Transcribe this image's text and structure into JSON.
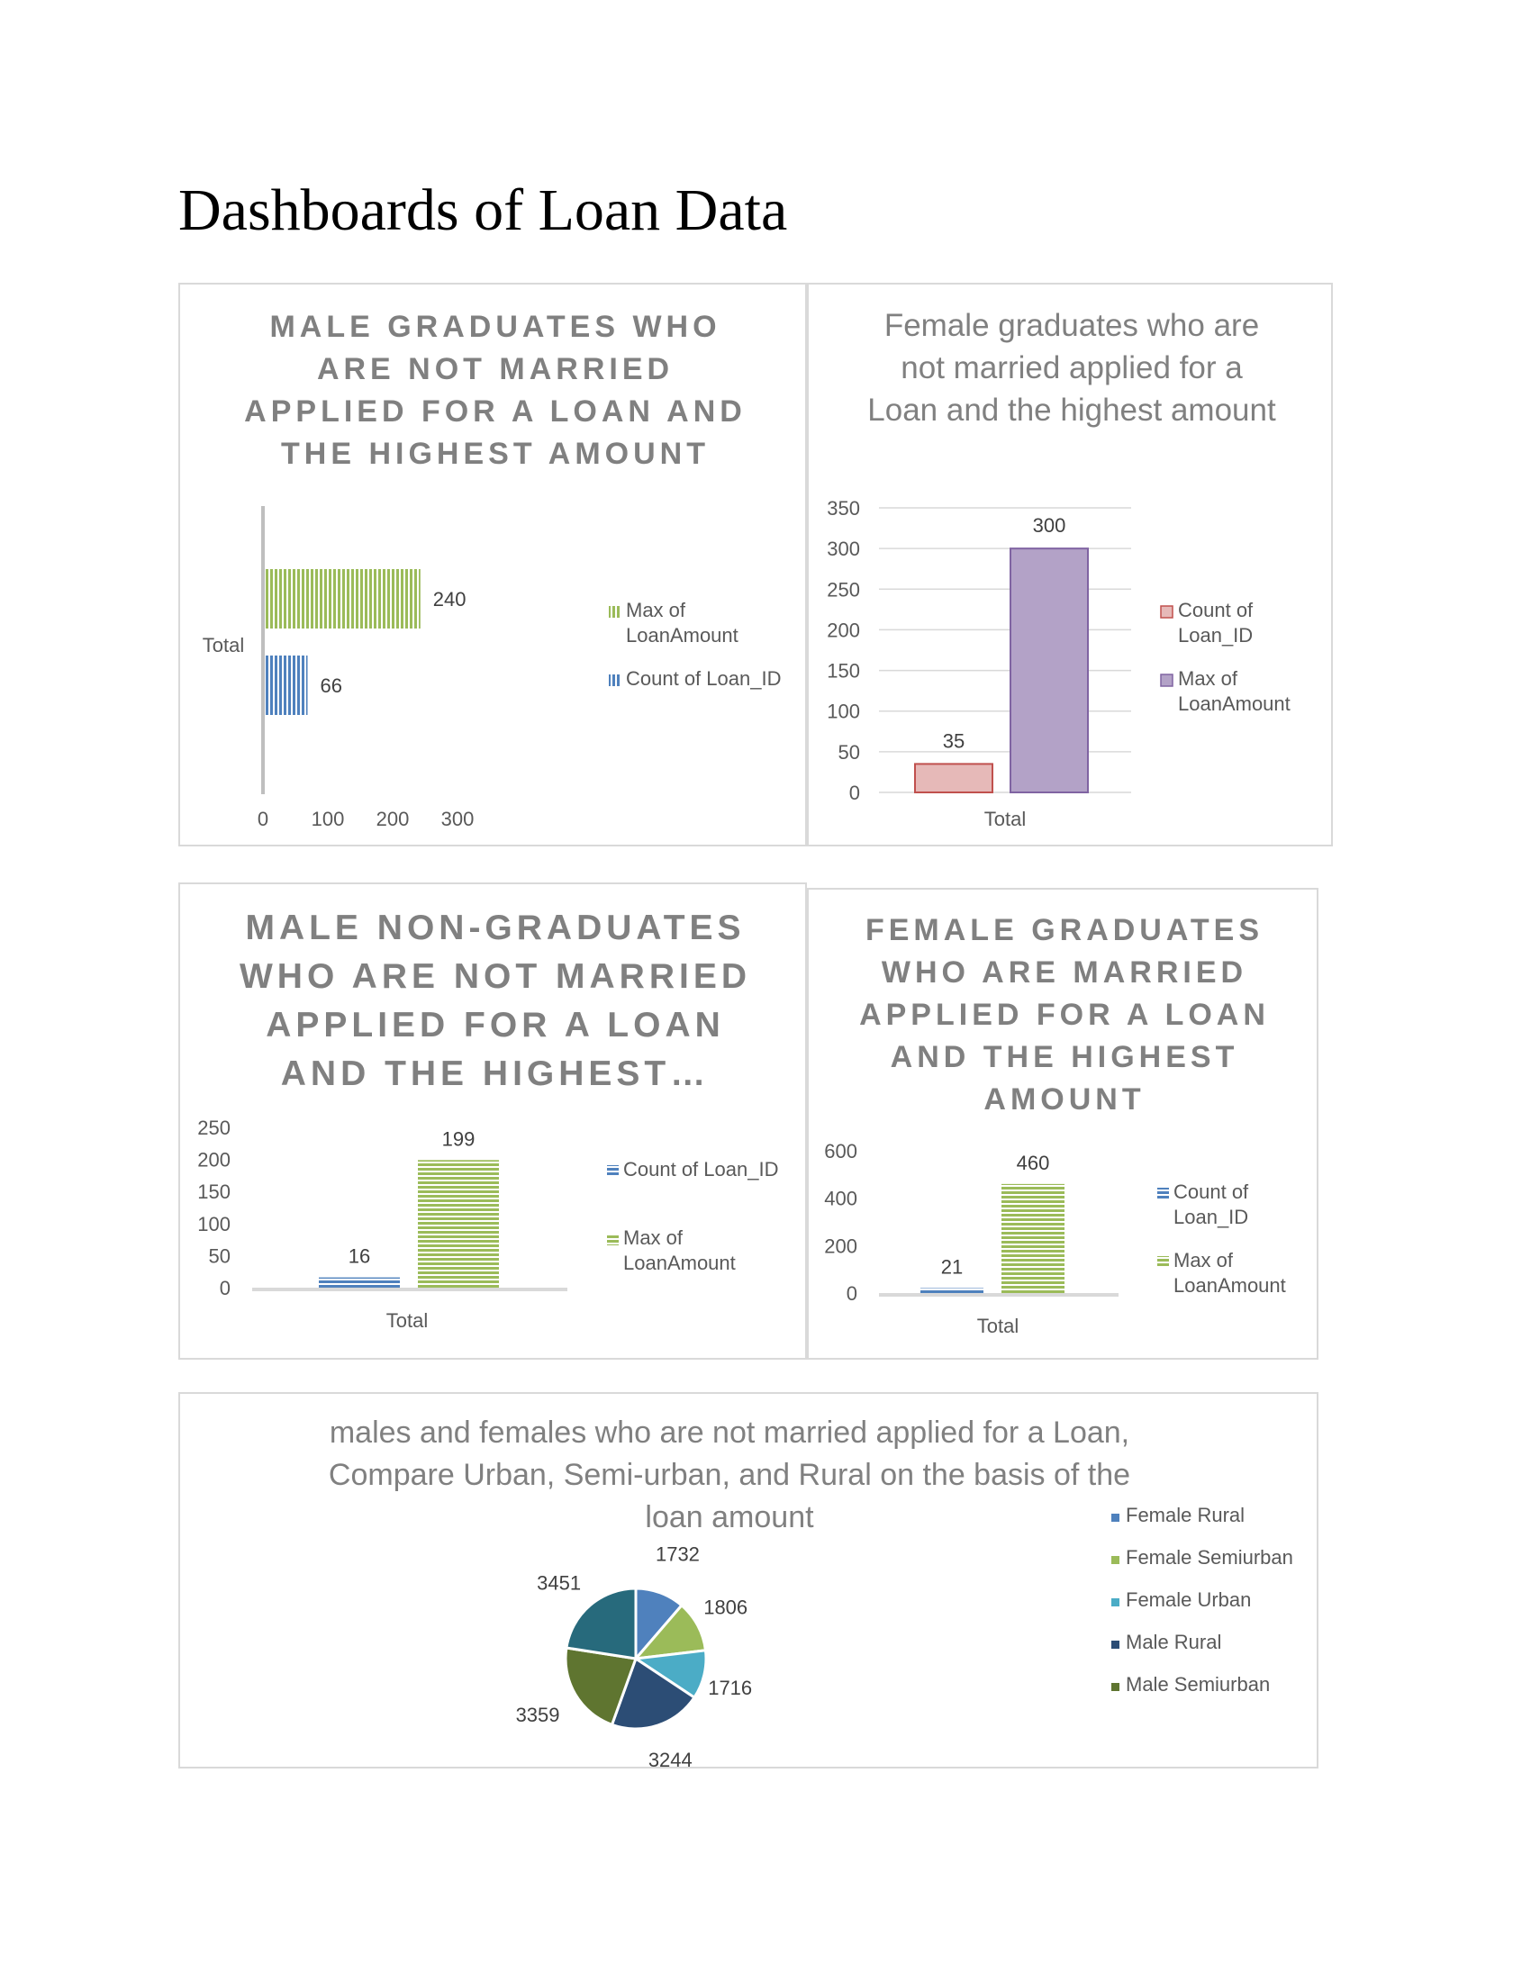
{
  "document": {
    "title": "Dashboards of Loan Data"
  },
  "chart_data": [
    {
      "id": "c1",
      "type": "bar",
      "orientation": "horizontal",
      "title": "MALE GRADUATES WHO ARE NOT MARRIED APPLIED FOR A LOAN AND THE HIGHEST AMOUNT",
      "categories": [
        "Total"
      ],
      "series": [
        {
          "name": "Max of LoanAmount",
          "values": [
            240
          ],
          "color": "#9bbb59"
        },
        {
          "name": "Count of Loan_ID",
          "values": [
            66
          ],
          "color": "#4f81bd"
        }
      ],
      "xlim": [
        0,
        300
      ],
      "x_ticks": [
        "0",
        "100",
        "200",
        "300"
      ],
      "grid": false,
      "legend": "right"
    },
    {
      "id": "c2",
      "type": "bar",
      "title": "Female graduates who are not married applied for a Loan and the highest amount",
      "categories": [
        "Total"
      ],
      "series": [
        {
          "name": "Count of Loan_ID",
          "values": [
            35
          ],
          "color": "#d99694"
        },
        {
          "name": "Max of LoanAmount",
          "values": [
            300
          ],
          "color": "#b3a2c7"
        }
      ],
      "ylim": [
        0,
        350
      ],
      "y_ticks": [
        "350",
        "300",
        "250",
        "200",
        "150",
        "100",
        "50",
        "0"
      ],
      "grid": true,
      "legend": "right"
    },
    {
      "id": "c3",
      "type": "bar",
      "title": "MALE NON-GRADUATES WHO ARE NOT MARRIED APPLIED FOR A LOAN AND THE HIGHEST…",
      "categories": [
        "Total"
      ],
      "series": [
        {
          "name": "Count of Loan_ID",
          "values": [
            16
          ],
          "color": "#4f81bd"
        },
        {
          "name": "Max of LoanAmount",
          "values": [
            199
          ],
          "color": "#9bbb59"
        }
      ],
      "ylim": [
        0,
        250
      ],
      "y_ticks": [
        "250",
        "200",
        "150",
        "100",
        "50",
        "0"
      ],
      "grid": false,
      "legend": "right"
    },
    {
      "id": "c4",
      "type": "bar",
      "title": "FEMALE GRADUATES WHO ARE MARRIED APPLIED FOR A LOAN AND THE HIGHEST AMOUNT",
      "categories": [
        "Total"
      ],
      "series": [
        {
          "name": "Count of Loan_ID",
          "values": [
            21
          ],
          "color": "#4f81bd"
        },
        {
          "name": "Max of LoanAmount",
          "values": [
            460
          ],
          "color": "#9bbb59"
        }
      ],
      "ylim": [
        0,
        600
      ],
      "y_ticks": [
        "600",
        "400",
        "200",
        "0"
      ],
      "grid": false,
      "legend": "right"
    },
    {
      "id": "c5",
      "type": "pie",
      "title": "males and females who are not married applied for a Loan, Compare Urban, Semi-urban, and Rural on the basis of the loan amount",
      "slices": [
        {
          "name": "Female Rural",
          "value": 1732,
          "color": "#4f81bd"
        },
        {
          "name": "Female Semiurban",
          "value": 1806,
          "color": "#9bbb59"
        },
        {
          "name": "Female Urban",
          "value": 1716,
          "color": "#4bacc6"
        },
        {
          "name": "Male Rural",
          "value": 3244,
          "color": "#2c4d75"
        },
        {
          "name": "Male Semiurban",
          "value": 3359,
          "color": "#5f7530"
        },
        {
          "name": "",
          "value": 3451,
          "color": "#276a7c"
        }
      ],
      "legend_entries": [
        "Female Rural",
        "Female Semiurban",
        "Female Urban",
        "Male Rural",
        "Male Semiurban"
      ],
      "legend": "right"
    }
  ]
}
